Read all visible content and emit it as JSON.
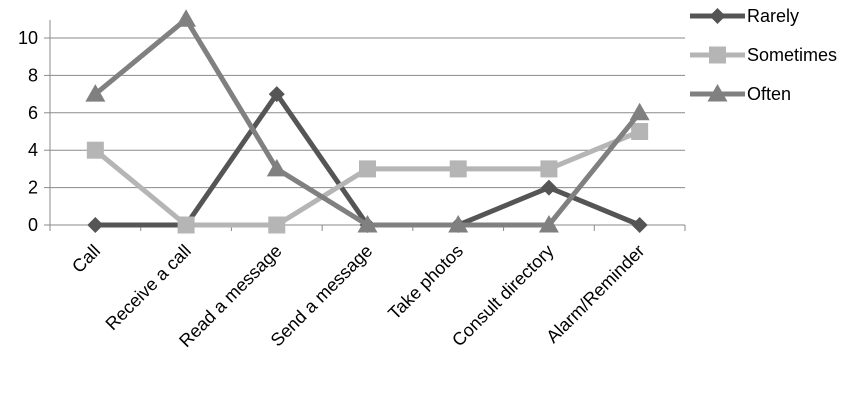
{
  "chart_data": {
    "type": "line",
    "categories": [
      "Call",
      "Receive a call",
      "Read a message",
      "Send a message",
      "Take photos",
      "Consult directory",
      "Alarm/Reminder"
    ],
    "series": [
      {
        "name": "Rarely",
        "values": [
          0,
          0,
          7,
          0,
          0,
          2,
          0
        ],
        "color": "#555555",
        "marker": "diamond"
      },
      {
        "name": "Sometimes",
        "values": [
          4,
          0,
          0,
          3,
          3,
          3,
          5
        ],
        "color": "#b5b5b5",
        "marker": "square"
      },
      {
        "name": "Often",
        "values": [
          7,
          11,
          3,
          0,
          0,
          0,
          6
        ],
        "color": "#808080",
        "marker": "triangle"
      }
    ],
    "ylim": [
      0,
      10
    ],
    "yticks": [
      0,
      2,
      4,
      6,
      8,
      10
    ],
    "grid": true,
    "legend_position": "right"
  }
}
